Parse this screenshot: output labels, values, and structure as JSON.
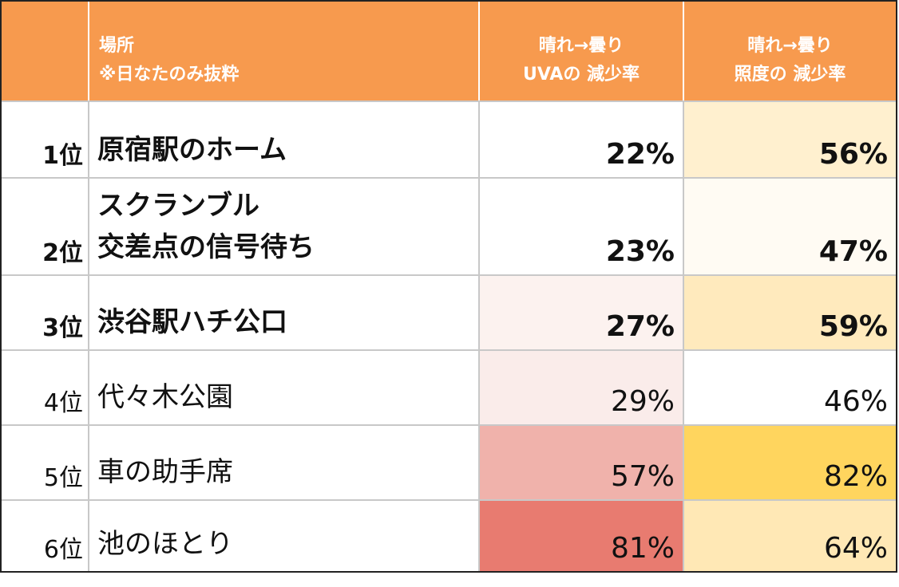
{
  "header": {
    "place_line1": "場所",
    "place_line2": "※日なたのみ抜粋",
    "uva_line1": "晴れ→曇り",
    "uva_line2": "UVAの 減少率",
    "lux_line1": "晴れ→曇り",
    "lux_line2": "照度の 減少率"
  },
  "rows": [
    {
      "rank": "1位",
      "place_line1": "原宿駅のホーム",
      "place_line2": "",
      "uva": "22%",
      "lux": "56%",
      "uva_color": "#ffffff",
      "lux_color": "#fff0cf",
      "bold": true
    },
    {
      "rank": "2位",
      "place_line1": "スクランブル",
      "place_line2": "交差点の信号待ち",
      "uva": "23%",
      "lux": "47%",
      "uva_color": "#ffffff",
      "lux_color": "#fffbf3",
      "bold": true
    },
    {
      "rank": "3位",
      "place_line1": "渋谷駅ハチ公口",
      "place_line2": "",
      "uva": "27%",
      "lux": "59%",
      "uva_color": "#fcf2ef",
      "lux_color": "#ffeabd",
      "bold": true
    },
    {
      "rank": "4位",
      "place_line1": "代々木公園",
      "place_line2": "",
      "uva": "29%",
      "lux": "46%",
      "uva_color": "#faecea",
      "lux_color": "#ffffff",
      "bold": false
    },
    {
      "rank": "5位",
      "place_line1": "車の助手席",
      "place_line2": "",
      "uva": "57%",
      "lux": "82%",
      "uva_color": "#f0b2ab",
      "lux_color": "#ffd55e",
      "bold": false
    },
    {
      "rank": "6位",
      "place_line1": "池のほとり",
      "place_line2": "",
      "uva": "81%",
      "lux": "64%",
      "uva_color": "#e87b70",
      "lux_color": "#ffe8b5",
      "bold": false
    }
  ]
}
